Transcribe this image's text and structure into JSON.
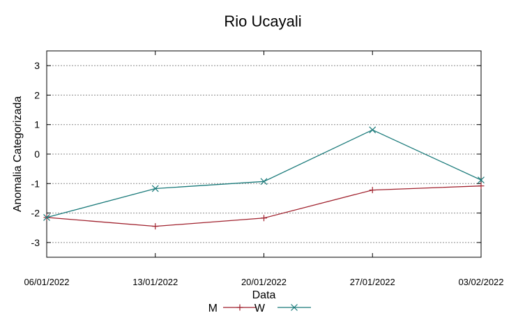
{
  "chart_data": {
    "type": "line",
    "title": "Rio Ucayali",
    "xlabel": "Data",
    "ylabel": "Anomalia Categorizada",
    "categories": [
      "06/01/2022",
      "13/01/2022",
      "20/01/2022",
      "27/01/2022",
      "03/02/2022"
    ],
    "ylim": [
      -3.5,
      3.5
    ],
    "yticks": [
      -3,
      -2,
      -1,
      0,
      1,
      2,
      3
    ],
    "grid": true,
    "legend": "bottom",
    "series": [
      {
        "name": "M",
        "color": "#a0212d",
        "marker": "plus",
        "values": [
          -2.15,
          -2.45,
          -2.17,
          -1.22,
          -1.08
        ]
      },
      {
        "name": "W",
        "color": "#1a7a7a",
        "marker": "x",
        "values": [
          -2.15,
          -1.17,
          -0.93,
          0.82,
          -0.88
        ]
      }
    ]
  }
}
